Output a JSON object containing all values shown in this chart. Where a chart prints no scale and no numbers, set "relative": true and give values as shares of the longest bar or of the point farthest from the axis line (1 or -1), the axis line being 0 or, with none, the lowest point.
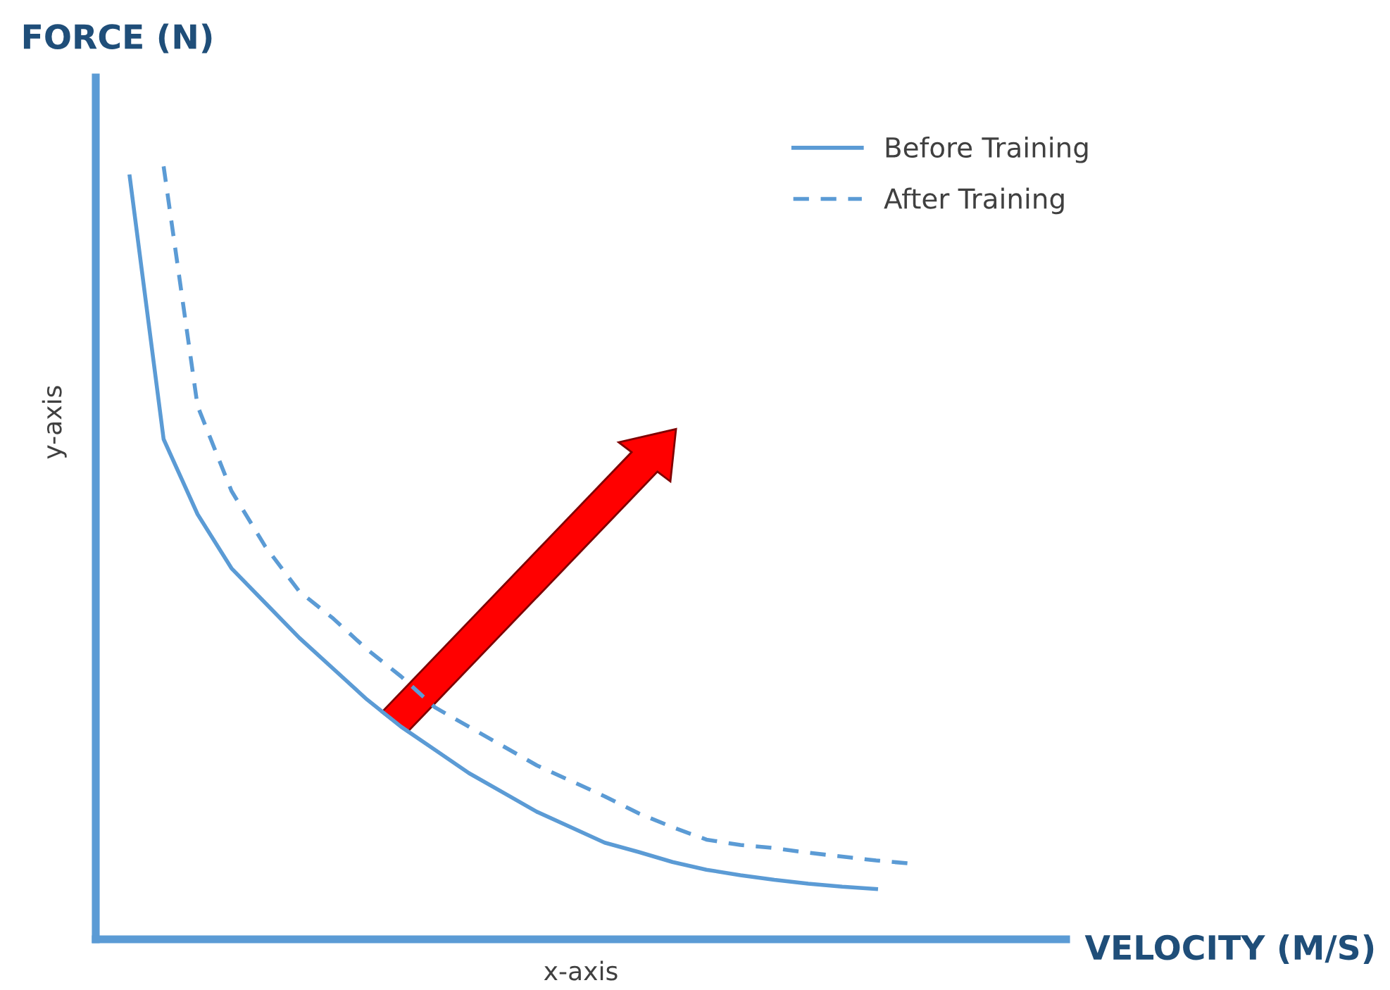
{
  "chart_data": {
    "type": "line",
    "relative": true,
    "xlabel": "x-axis",
    "ylabel": "y-axis",
    "legend": "top right",
    "annotations": [
      "FORCE (N)",
      "VELOCITY (M/S)"
    ],
    "categories": [
      null,
      null,
      null,
      null,
      null,
      null,
      null,
      null,
      null,
      null,
      null,
      null,
      null,
      null,
      null,
      null,
      null,
      null,
      null,
      null,
      null,
      null,
      null,
      null
    ],
    "series": [
      {
        "name": "Before Training",
        "color": "#5b9bd5",
        "line_style": "solid",
        "values": [
          0.987,
          0.647,
          0.55,
          0.48,
          0.435,
          0.39,
          0.35,
          0.31,
          0.275,
          0.245,
          0.215,
          0.19,
          0.165,
          0.145,
          0.125,
          0.113,
          0.1,
          0.09,
          0.083,
          0.077,
          0.072,
          0.068,
          0.065,
          null
        ]
      },
      {
        "name": "After Training",
        "color": "#5b9bd5",
        "line_style": "dashed",
        "values": [
          null,
          1.0,
          0.69,
          0.58,
          0.508,
          0.45,
          0.415,
          0.375,
          0.34,
          0.3,
          0.275,
          0.25,
          0.225,
          0.205,
          0.185,
          0.163,
          0.145,
          0.129,
          0.122,
          0.118,
          0.112,
          0.107,
          0.102,
          0.098
        ]
      }
    ]
  }
}
